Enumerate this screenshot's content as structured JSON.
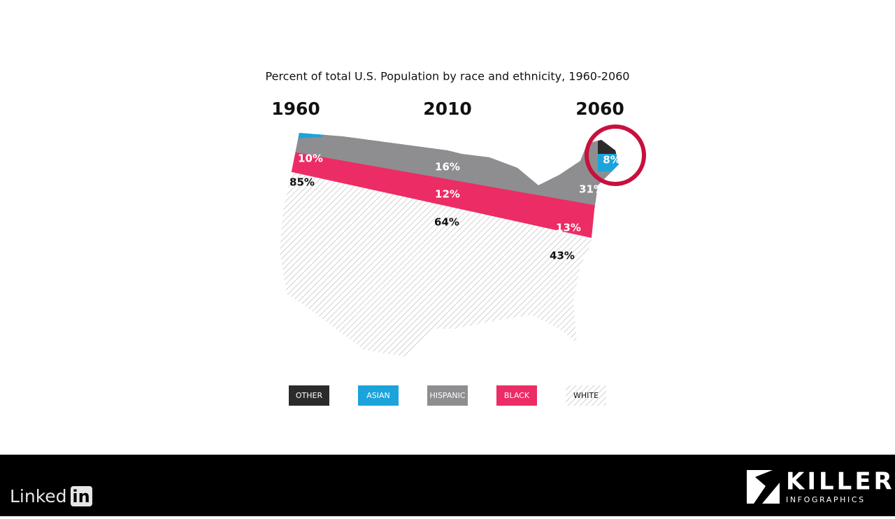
{
  "title": "Percent of total U.S. Population by race and ethnicity, 1960-2060",
  "years": [
    "1960",
    "2010",
    "2060"
  ],
  "map_labels": {
    "1960": {
      "black": "10%",
      "white": "85%"
    },
    "2010": {
      "hispanic": "16%",
      "black": "12%",
      "white": "64%"
    },
    "2060": {
      "asian": "8%",
      "hispanic": "31%",
      "black": "13%",
      "white": "43%"
    }
  },
  "legend": [
    {
      "label": "OTHER",
      "color": "#2b2b2b"
    },
    {
      "label": "ASIAN",
      "color": "#1ba4db"
    },
    {
      "label": "HISPANIC",
      "color": "#8e8e90"
    },
    {
      "label": "BLACK",
      "color": "#ec2c64"
    },
    {
      "label": "WHITE",
      "color": "hatch"
    }
  ],
  "footer": {
    "linkedin_text": "Linked",
    "linkedin_box": "in",
    "brand": "KILLER",
    "brand_sub": "INFOGRAPHICS"
  }
}
